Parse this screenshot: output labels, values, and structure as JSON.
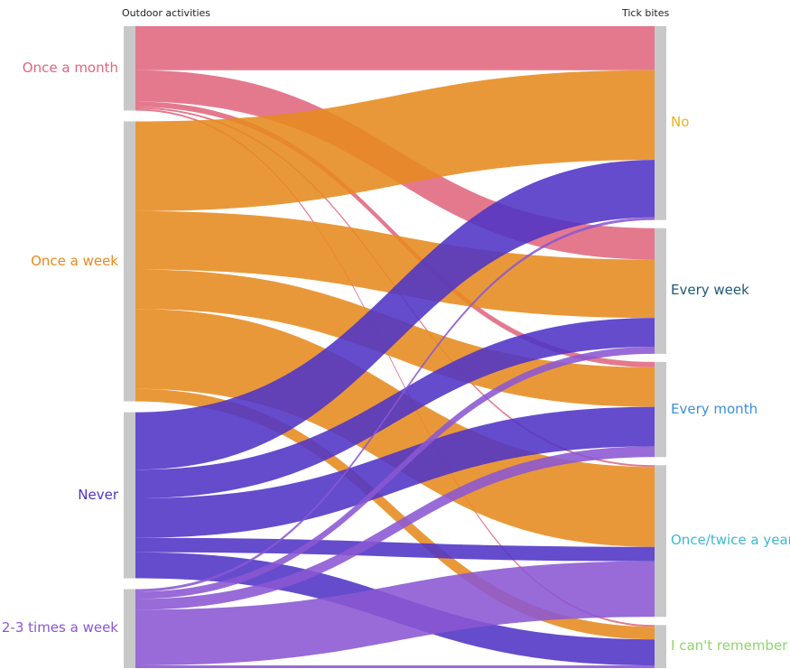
{
  "chart_data": {
    "type": "sankey",
    "source_axis_label": "Outdoor activities",
    "target_axis_label": "Tick bites",
    "sources": [
      {
        "name": "Once a month",
        "color": "#e0667e"
      },
      {
        "name": "Once a week",
        "color": "#e68a1e"
      },
      {
        "name": "Never",
        "color": "#4f33c6"
      },
      {
        "name": "2-3 times a week",
        "color": "#8a57d3"
      }
    ],
    "targets": [
      {
        "name": "No",
        "color": "#e8b31c"
      },
      {
        "name": "Every week",
        "color": "#1e5a78"
      },
      {
        "name": "Every month",
        "color": "#3b8fe0"
      },
      {
        "name": "Once/twice a year",
        "color": "#3fb9cf"
      },
      {
        "name": "I can't remember",
        "color": "#8fd66a"
      }
    ],
    "flows": [
      {
        "source": "Once a month",
        "target": "No",
        "value": 49
      },
      {
        "source": "Once a month",
        "target": "Every week",
        "value": 35
      },
      {
        "source": "Once a month",
        "target": "Every month",
        "value": 6
      },
      {
        "source": "Once a month",
        "target": "Once/twice a year",
        "value": 2
      },
      {
        "source": "Once a month",
        "target": "I can't remember",
        "value": 2
      },
      {
        "source": "Once a week",
        "target": "No",
        "value": 100
      },
      {
        "source": "Once a week",
        "target": "Every week",
        "value": 65
      },
      {
        "source": "Once a week",
        "target": "Every month",
        "value": 44
      },
      {
        "source": "Once a week",
        "target": "Once/twice a year",
        "value": 89
      },
      {
        "source": "Once a week",
        "target": "I can't remember",
        "value": 14
      },
      {
        "source": "Never",
        "target": "No",
        "value": 64
      },
      {
        "source": "Never",
        "target": "Every week",
        "value": 32
      },
      {
        "source": "Never",
        "target": "Every month",
        "value": 44
      },
      {
        "source": "Never",
        "target": "Once/twice a year",
        "value": 16
      },
      {
        "source": "Never",
        "target": "I can't remember",
        "value": 29
      },
      {
        "source": "2-3 times a week",
        "target": "No",
        "value": 3
      },
      {
        "source": "2-3 times a week",
        "target": "Every week",
        "value": 8
      },
      {
        "source": "2-3 times a week",
        "target": "Every month",
        "value": 12
      },
      {
        "source": "2-3 times a week",
        "target": "Once/twice a year",
        "value": 62
      },
      {
        "source": "2-3 times a week",
        "target": "I can't remember",
        "value": 3
      }
    ],
    "node_bar_color": "#c8c8c8"
  }
}
